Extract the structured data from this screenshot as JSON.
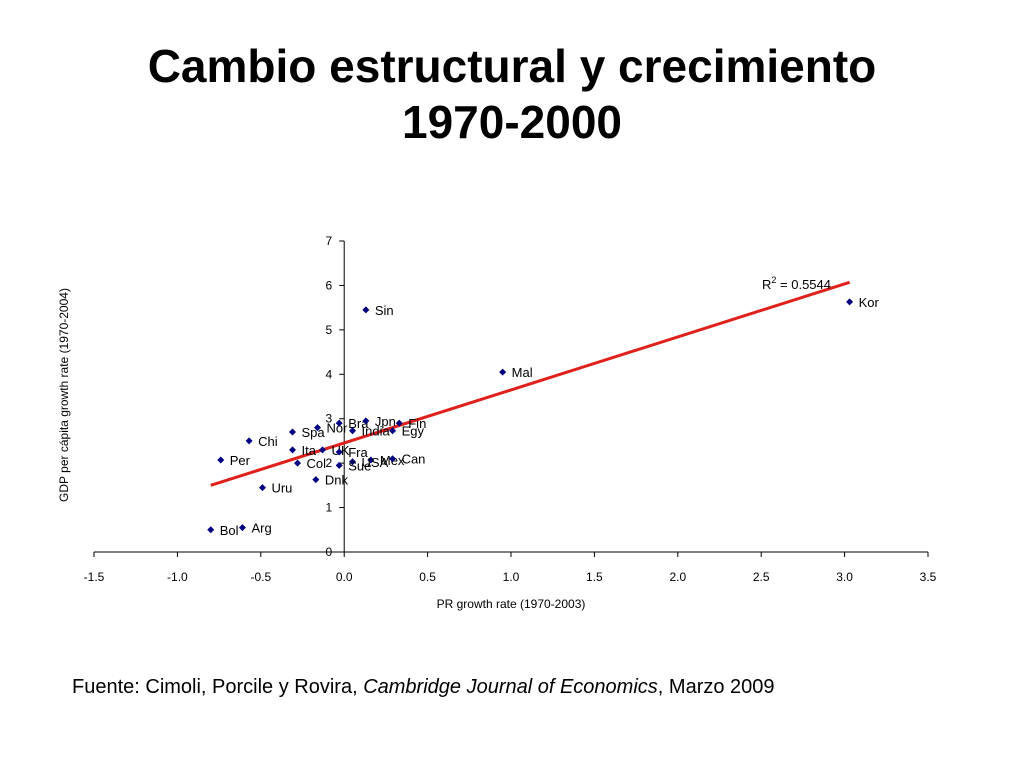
{
  "slide": {
    "title_line1": "Cambio estructural y crecimiento",
    "title_line2": "1970-2000",
    "source_prefix": "Fuente: Cimoli, Porcile y Rovira, ",
    "source_journal": "Cambridge Journal of Economics",
    "source_suffix": ", Marzo 2009"
  },
  "colors": {
    "marker": "#000080",
    "trendline": "#e0201b",
    "axis": "#000000"
  },
  "chart_data": {
    "type": "scatter",
    "title": "",
    "xlabel": "PR growth rate (1970-2003)",
    "ylabel": "GDP per cápita growth rate (1970-2004)",
    "xlim": [
      -1.5,
      3.5
    ],
    "ylim": [
      0,
      7
    ],
    "x_ticks": [
      "-1.5",
      "-1.0",
      "-0.5",
      "0.0",
      "0.5",
      "1.0",
      "1.5",
      "2.0",
      "2.5",
      "3.0",
      "3.5"
    ],
    "y_ticks": [
      "0",
      "1",
      "2",
      "3",
      "4",
      "5",
      "6",
      "7"
    ],
    "grid": false,
    "points": [
      {
        "label": "Kor",
        "x": 3.03,
        "y": 5.63
      },
      {
        "label": "Sin",
        "x": 0.13,
        "y": 5.45
      },
      {
        "label": "Mal",
        "x": 0.95,
        "y": 4.05
      },
      {
        "label": "Bra",
        "x": -0.03,
        "y": 2.9
      },
      {
        "label": "Jpn",
        "x": 0.13,
        "y": 2.95
      },
      {
        "label": "Fin",
        "x": 0.33,
        "y": 2.9
      },
      {
        "label": "Nor",
        "x": -0.16,
        "y": 2.8
      },
      {
        "label": "India",
        "x": 0.05,
        "y": 2.73
      },
      {
        "label": "Egy",
        "x": 0.29,
        "y": 2.73
      },
      {
        "label": "Spa",
        "x": -0.31,
        "y": 2.7
      },
      {
        "label": "Chi",
        "x": -0.57,
        "y": 2.5
      },
      {
        "label": "Ita",
        "x": -0.31,
        "y": 2.3
      },
      {
        "label": "UK",
        "x": -0.13,
        "y": 2.3
      },
      {
        "label": "Fra",
        "x": -0.03,
        "y": 2.25
      },
      {
        "label": "Mex",
        "x": 0.16,
        "y": 2.07
      },
      {
        "label": "Can",
        "x": 0.29,
        "y": 2.1
      },
      {
        "label": "USA",
        "x": 0.05,
        "y": 2.03
      },
      {
        "label": "Sue",
        "x": -0.03,
        "y": 1.95
      },
      {
        "label": "Col",
        "x": -0.28,
        "y": 2.0
      },
      {
        "label": "Per",
        "x": -0.74,
        "y": 2.07
      },
      {
        "label": "Dnk",
        "x": -0.17,
        "y": 1.63
      },
      {
        "label": "Uru",
        "x": -0.49,
        "y": 1.45
      },
      {
        "label": "Arg",
        "x": -0.61,
        "y": 0.55
      },
      {
        "label": "Bol",
        "x": -0.8,
        "y": 0.5
      }
    ],
    "trendline": {
      "type": "linear",
      "x_from": -0.8,
      "x_to": 3.03,
      "y_from": 1.5,
      "y_to": 6.07
    },
    "annotation": {
      "r2_prefix": "R",
      "r2_superscript": "2",
      "r2_value": " = 0.5544"
    }
  }
}
